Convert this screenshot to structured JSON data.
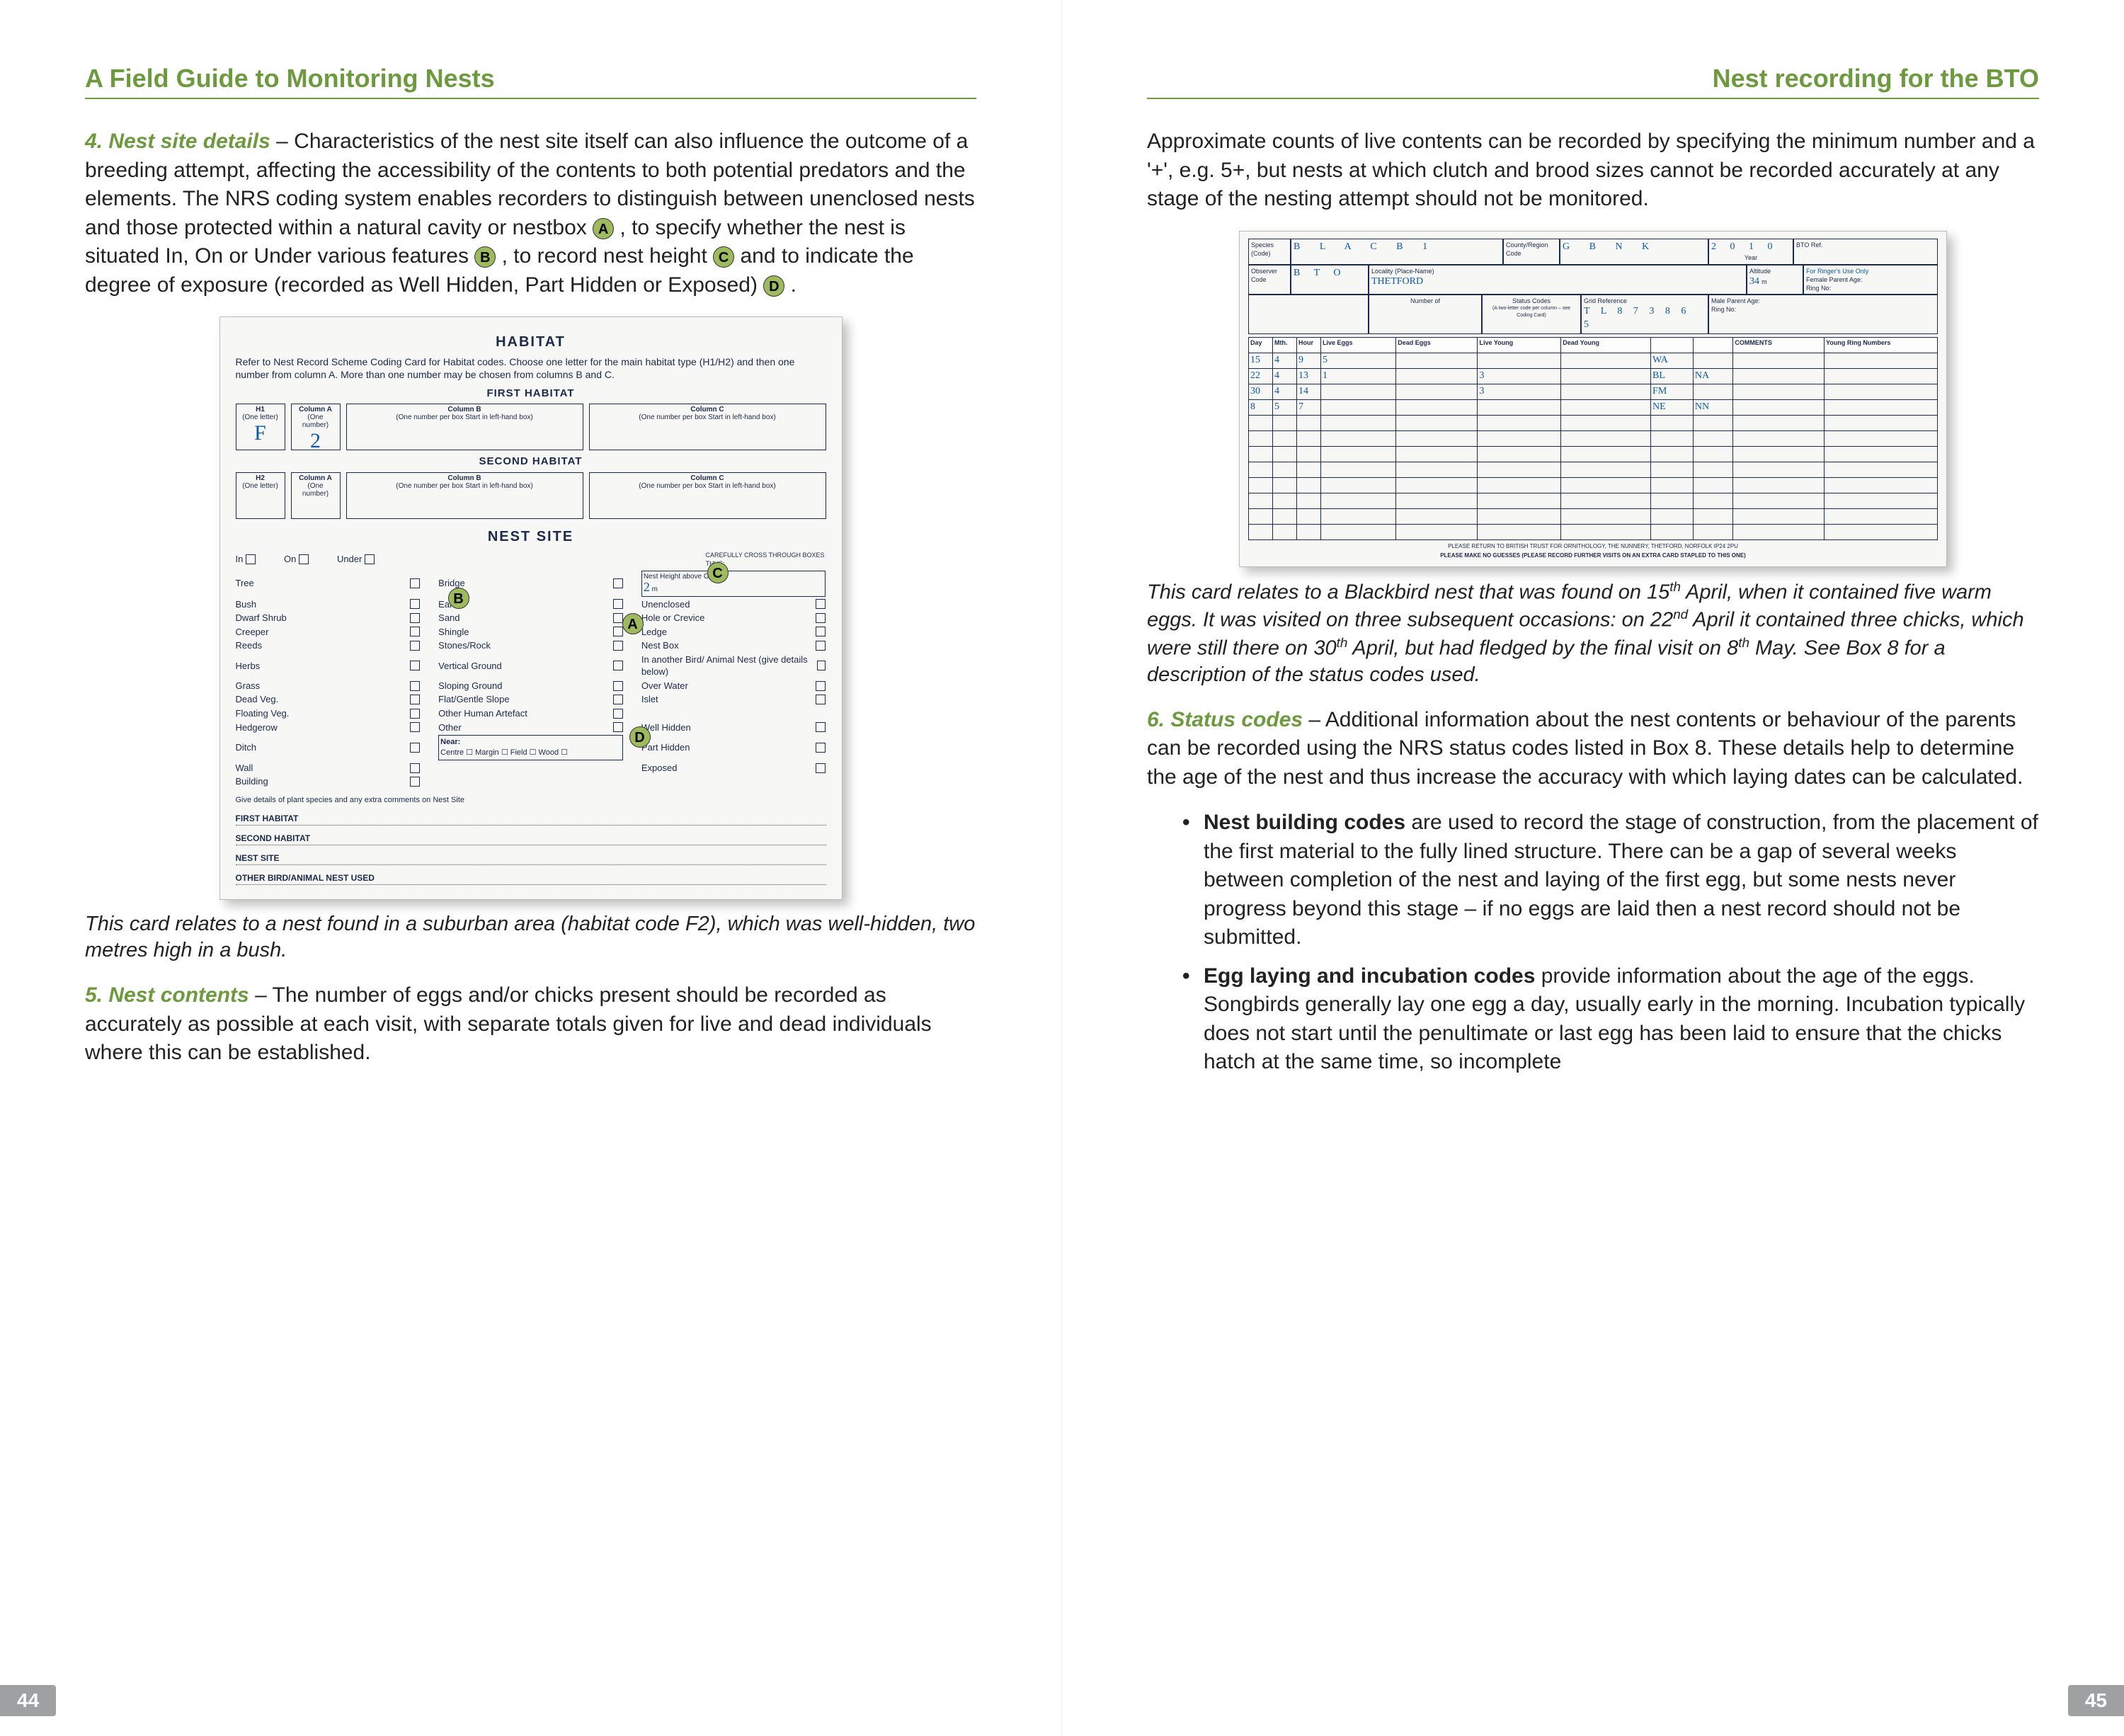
{
  "header_left": "A Field Guide to Monitoring Nests",
  "header_right": "Nest recording for the BTO",
  "pg_left": "44",
  "pg_right": "45",
  "s4_lead": "4. Nest site details",
  "s4_p_a": " – Characteristics of the nest site itself can also influence the outcome of a breeding attempt, affecting the accessibility of the contents to both potential predators and the elements. The NRS coding system enables recorders to distinguish between unenclosed nests and those protected within a natural cavity or nestbox ",
  "s4_p_b": " , to specify whether the nest is situated In, On or Under various features ",
  "s4_p_c": " , to record nest height ",
  "s4_p_d": " and to indicate the degree of exposure (recorded as Well Hidden, Part Hidden or Exposed) ",
  "s4_mk": {
    "a": "A",
    "b": "B",
    "c": "C",
    "d": "D"
  },
  "card1": {
    "h_hab": "HABITAT",
    "instr": "Refer to Nest Record Scheme Coding Card for Habitat codes. Choose one letter for the main habitat type (H1/H2) and then one number from column A. More than one number may be chosen from columns B and C.",
    "first": "FIRST HABITAT",
    "second": "SECOND HABITAT",
    "col_h1": "H1",
    "col_h2": "H2",
    "col_h1s": "(One letter)",
    "col_a": "Column A",
    "col_as": "(One number)",
    "col_b": "Column B",
    "col_bs": "(One number per box\nStart in left-hand box)",
    "col_c": "Column C",
    "col_cs": "(One number per box\nStart in left-hand box)",
    "w_h1": "F",
    "w_a": "2",
    "h_nest": "NEST SITE",
    "opts_ionu": [
      "In",
      "On",
      "Under"
    ],
    "col1": [
      "Tree",
      "Bush",
      "Dwarf Shrub",
      "Creeper",
      "Reeds",
      "Herbs",
      "Grass",
      "Dead Veg.",
      "Floating Veg.",
      "Hedgerow",
      "Ditch",
      "Wall",
      "Building"
    ],
    "col2": [
      "Bridge",
      "Earth",
      "Sand",
      "Shingle",
      "Stones/Rock",
      "Vertical Ground",
      "Sloping Ground",
      "Flat/Gentle Slope",
      "Other Human Artefact",
      "Other"
    ],
    "near": "Near:",
    "near_opts": [
      "Centre",
      "Margin",
      "Field",
      "Wood"
    ],
    "col3_top": "CAREFULLY CROSS THROUGH BOXES THUS:",
    "nh": "Nest Height above Ground",
    "nh_val": "2",
    "nh_unit": "m",
    "col3": [
      "Unenclosed",
      "Hole or Crevice",
      "Ledge",
      "Nest Box",
      "In another Bird/ Animal Nest (give details below)",
      "Over Water",
      "Islet"
    ],
    "col3_exp": [
      "Well Hidden",
      "Part Hidden",
      "Exposed"
    ],
    "dots_intro": "Give details of plant species and any extra comments on Nest Site",
    "dots": [
      "FIRST HABITAT",
      "SECOND HABITAT",
      "NEST SITE",
      "OTHER BIRD/ANIMAL NEST USED"
    ]
  },
  "cap1": "This card relates to a nest found in a suburban area (habitat code F2), which was well-hidden, two metres high in a bush.",
  "s5_lead": "5. Nest contents",
  "s5_p": " – The number of eggs and/or chicks present should be recorded as accurately as possible at each visit, with separate totals given for live and dead individuals where this can be established.",
  "r_p1": "Approximate counts of live contents can be recorded by specifying the minimum number and a '+', e.g. 5+, but nests at which clutch and brood sizes cannot be recorded accurately at any stage of the nesting attempt should not be monitored.",
  "card2": {
    "sp_l": "Species (Code)",
    "sp": "B L A C B 1",
    "cr_l": "County/Region Code",
    "cr": "G B N K",
    "yr_l": "Year",
    "yr": "2 0 1 0",
    "bto": "BTO Ref.",
    "ob_l": "Observer Code",
    "ob": "B T O",
    "loc_l": "Locality (Place-Name)",
    "loc": "THETFORD",
    "alt_l": "Altitude",
    "alt": "34",
    "alt_u": "m",
    "ring_l": "For Ringer's Use Only",
    "fp": "Female Parent  Age:",
    "rn": "Ring No:",
    "mp": "Male Parent  Age:",
    "yrn": "Young Ring Numbers",
    "num_l": "Number of",
    "sc_l": "Status Codes",
    "sc_s": "(A two-letter code per column – see Coding Card)",
    "gr_l": "Grid Reference",
    "gr": "T L 8 7 3 8 6 5",
    "th": [
      "Day",
      "Mth.",
      "Hour",
      "Live Eggs",
      "Dead Eggs",
      "Live Young",
      "Dead Young",
      "",
      "",
      "COMMENTS"
    ],
    "rows": [
      [
        "15",
        "4",
        "9",
        "5",
        "",
        "",
        "",
        "WA",
        "",
        ""
      ],
      [
        "22",
        "4",
        "13",
        "1",
        "",
        "3",
        "",
        "BL",
        "NA",
        ""
      ],
      [
        "30",
        "4",
        "14",
        "",
        "",
        "3",
        "",
        "FM",
        "",
        ""
      ],
      [
        "8",
        "5",
        "7",
        "",
        "",
        "",
        "",
        "NE",
        "NN",
        ""
      ]
    ],
    "foot1": "PLEASE RETURN TO BRITISH TRUST FOR ORNITHOLOGY, THE NUNNERY, THETFORD, NORFOLK IP24 2PU",
    "foot2": "PLEASE MAKE NO GUESSES (PLEASE RECORD FURTHER VISITS ON AN EXTRA CARD STAPLED TO THIS ONE)"
  },
  "cap2_a": "This card relates to a Blackbird nest that was found on 15",
  "cap2_b": " April, when it contained five warm eggs. It was visited on three subsequent occasions: on 22",
  "cap2_c": " April it contained three chicks, which were still there on 30",
  "cap2_d": " April, but had fledged by the final visit on 8",
  "cap2_e": " May. See Box 8 for a description of the status codes used.",
  "sup_th": "th",
  "sup_nd": "nd",
  "s6_lead": "6. Status codes",
  "s6_p": " – Additional information about the nest contents or behaviour of the parents can be recorded using the NRS status codes listed in Box 8. These details help to determine the age of the nest and thus increase the accuracy with which laying dates can be calculated.",
  "b1_t": "Nest building codes",
  "b1_p": " are used to record the stage of construction, from the placement of the first material to the fully lined structure. There can be a gap of several weeks between completion of the nest and laying of the first egg, but some nests never progress beyond this stage – if no eggs are laid then a nest record should not be submitted.",
  "b2_t": "Egg laying and incubation codes",
  "b2_p": " provide information about the age of the eggs. Songbirds generally lay one egg a day, usually early in the morning. Incubation typically does not start until the penultimate or last egg has been laid to ensure that the chicks hatch at the same time, so incomplete"
}
